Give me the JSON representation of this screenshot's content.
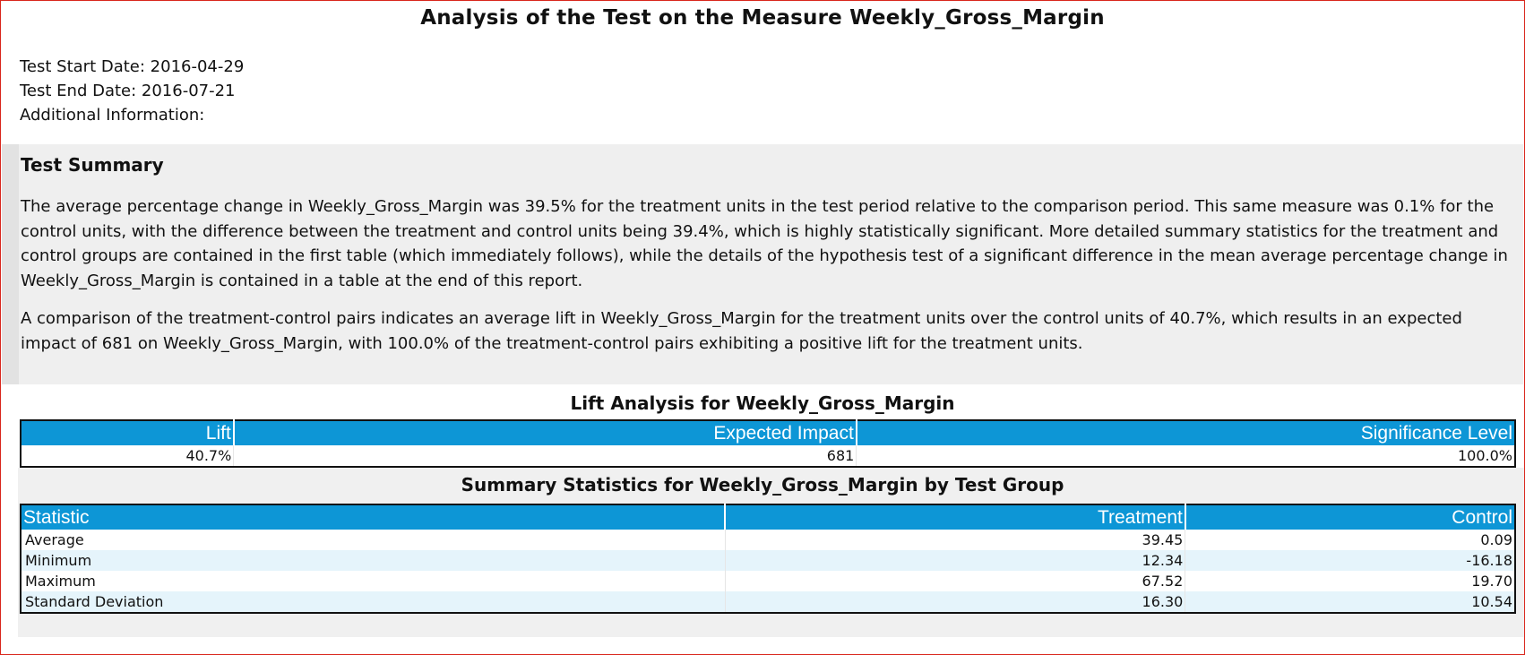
{
  "report": {
    "title": "Analysis of the Test on the Measure Weekly_Gross_Margin"
  },
  "meta": {
    "start_date": "Test Start Date: 2016-04-29",
    "end_date": "Test End Date: 2016-07-21",
    "additional_info": "Additional Information:"
  },
  "summary": {
    "heading": "Test Summary",
    "paragraph1": "The average percentage change in Weekly_Gross_Margin was 39.5% for the treatment units in the test period relative to the comparison period. This same measure was 0.1% for the control units, with the difference between the treatment and control units being 39.4%, which is highly statistically significant. More detailed summary statistics for the treatment and control groups are contained in the first table (which immediately follows), while the details of the hypothesis test of a significant difference in the mean average percentage change in Weekly_Gross_Margin is contained in a table at the end of this report.",
    "paragraph2": "A comparison of the treatment-control pairs indicates an average lift in Weekly_Gross_Margin for the treatment units over the control units of 40.7%, which results in an expected impact of 681 on Weekly_Gross_Margin, with 100.0% of the treatment-control pairs exhibiting a positive lift for the treatment units."
  },
  "lift_analysis": {
    "title": "Lift Analysis for Weekly_Gross_Margin",
    "headers": [
      "Lift",
      "Expected Impact",
      "Significance Level"
    ],
    "row": [
      "40.7%",
      "681",
      "100.0%"
    ]
  },
  "summary_statistics": {
    "title": "Summary Statistics for Weekly_Gross_Margin by Test Group",
    "headers": [
      "Statistic",
      "Treatment",
      "Control"
    ],
    "rows": [
      [
        "Average",
        "39.45",
        "0.09"
      ],
      [
        "Minimum",
        "12.34",
        "-16.18"
      ],
      [
        "Maximum",
        "67.52",
        "19.70"
      ],
      [
        "Standard Deviation",
        "16.30",
        "10.54"
      ]
    ]
  },
  "colors": {
    "header_blue": "#0d96d6",
    "alt_row": "#e5f4fb",
    "summary_background": "#efefef",
    "page_border": "#d9261c"
  }
}
